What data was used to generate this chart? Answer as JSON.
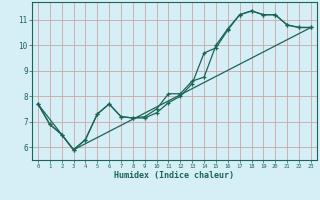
{
  "bg_color": "#d6eef5",
  "grid_color": "#c8a8a8",
  "line_color": "#1a6655",
  "xlabel": "Humidex (Indice chaleur)",
  "xlim": [
    -0.5,
    23.5
  ],
  "ylim": [
    5.5,
    11.7
  ],
  "yticks": [
    6,
    7,
    8,
    9,
    10,
    11
  ],
  "xticks": [
    0,
    1,
    2,
    3,
    4,
    5,
    6,
    7,
    8,
    9,
    10,
    11,
    12,
    13,
    14,
    15,
    16,
    17,
    18,
    19,
    20,
    21,
    22,
    23
  ],
  "line1_x": [
    0,
    1,
    2,
    3,
    4,
    5,
    6,
    7,
    8,
    9,
    10,
    11,
    12,
    13,
    14,
    15,
    16,
    17,
    18,
    19,
    20,
    21,
    22,
    23
  ],
  "line1_y": [
    7.7,
    6.9,
    6.5,
    5.9,
    6.3,
    7.3,
    7.7,
    7.2,
    7.15,
    7.15,
    7.35,
    7.75,
    8.0,
    8.5,
    9.7,
    9.9,
    10.6,
    11.2,
    11.35,
    11.2,
    11.2,
    10.8,
    10.7,
    10.7
  ],
  "line2_x": [
    0,
    1,
    2,
    3,
    4,
    5,
    6,
    7,
    8,
    9,
    10,
    11,
    12,
    13,
    14,
    15,
    16,
    17,
    18,
    19,
    20,
    21,
    22,
    23
  ],
  "line2_y": [
    7.7,
    6.9,
    6.5,
    5.9,
    6.3,
    7.3,
    7.7,
    7.2,
    7.15,
    7.2,
    7.5,
    8.1,
    8.1,
    8.6,
    8.75,
    10.0,
    10.65,
    11.2,
    11.35,
    11.2,
    11.2,
    10.8,
    10.7,
    10.7
  ],
  "line3_x": [
    0,
    3,
    23
  ],
  "line3_y": [
    7.7,
    5.9,
    10.7
  ]
}
